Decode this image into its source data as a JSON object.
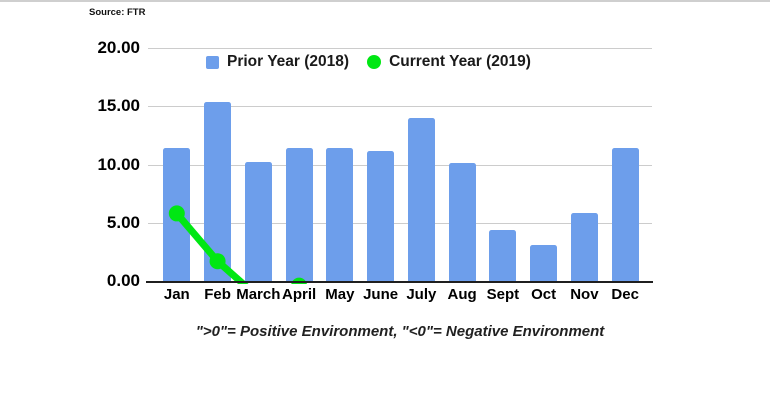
{
  "source_label": "Source: FTR",
  "legend": [
    {
      "label": "Prior Year (2018)",
      "color": "#6d9eeb",
      "marker": "square"
    },
    {
      "label": "Current Year (2019)",
      "color": "#00e713",
      "marker": "circle"
    }
  ],
  "footnote": "\">0\"= Positive Environment, \"<0\"= Negative Environment",
  "chart_data": {
    "type": "bar",
    "title": "",
    "xlabel": "",
    "ylabel": "",
    "categories": [
      "Jan",
      "Feb",
      "March",
      "April",
      "May",
      "June",
      "July",
      "Aug",
      "Sept",
      "Oct",
      "Nov",
      "Dec"
    ],
    "series": [
      {
        "name": "Prior Year (2018)",
        "type": "bar",
        "color": "#6d9eeb",
        "values": [
          11.4,
          15.4,
          10.2,
          11.4,
          11.4,
          11.2,
          14.0,
          10.1,
          4.4,
          3.1,
          5.8,
          11.4
        ]
      },
      {
        "name": "Current Year (2019)",
        "type": "line",
        "color": "#00e713",
        "values": [
          5.8,
          1.7,
          -1.4,
          -0.4,
          null,
          null,
          null,
          null,
          null,
          null,
          null,
          null
        ],
        "note": "values below 0 are clipped at the zero axis; only the top of the April marker is visible"
      }
    ],
    "ylim": [
      0,
      20
    ],
    "yticks": [
      {
        "value": 20,
        "label": "20.00"
      },
      {
        "value": 15,
        "label": "15.00"
      },
      {
        "value": 10,
        "label": "10.00"
      },
      {
        "value": 5,
        "label": "5.00"
      },
      {
        "value": 0,
        "label": "0.00"
      }
    ],
    "grid": true,
    "legend_position": "top",
    "annotation": "\">0\"= Positive Environment, \"<0\"= Negative Environment"
  }
}
